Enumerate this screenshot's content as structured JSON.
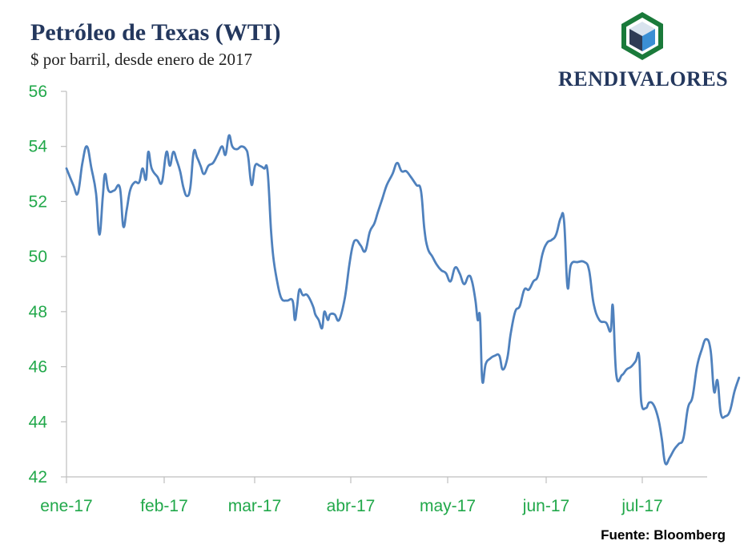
{
  "header": {
    "title": "Petróleo de Texas (WTI)",
    "subtitle": "$ por barril, desde enero de 2017"
  },
  "logo": {
    "name": "RENDIVALORES",
    "icon": "hexagon-cube-icon",
    "colors": {
      "hex": "#1a7a3a",
      "cube_left": "#2e3b55",
      "cube_right": "#3b8fd4",
      "cube_top": "#d9e3ee"
    }
  },
  "source": "Fuente: Bloomberg",
  "chart_data": {
    "type": "line",
    "title": "Petróleo de Texas (WTI)",
    "ylabel": "",
    "xlabel": "",
    "ylim": [
      42,
      56
    ],
    "yticks": [
      42,
      44,
      46,
      48,
      50,
      52,
      54,
      56
    ],
    "xticks": [
      "ene-17",
      "feb-17",
      "mar-17",
      "abr-17",
      "may-17",
      "jun-17",
      "jul-17"
    ],
    "xlim": [
      0,
      29.6
    ],
    "grid": false,
    "colors": {
      "line": "#4f81bd",
      "tick_labels": "#21a84a",
      "axis": "#bfbfbf"
    },
    "series": [
      {
        "name": "WTI",
        "points": [
          [
            0.0,
            53.2
          ],
          [
            0.3,
            52.6
          ],
          [
            0.5,
            52.3
          ],
          [
            0.7,
            53.4
          ],
          [
            0.9,
            54.0
          ],
          [
            1.1,
            53.2
          ],
          [
            1.3,
            52.3
          ],
          [
            1.45,
            50.8
          ],
          [
            1.6,
            52.2
          ],
          [
            1.7,
            53.0
          ],
          [
            1.85,
            52.4
          ],
          [
            2.1,
            52.4
          ],
          [
            2.35,
            52.5
          ],
          [
            2.5,
            51.1
          ],
          [
            2.65,
            51.7
          ],
          [
            2.8,
            52.4
          ],
          [
            3.0,
            52.7
          ],
          [
            3.2,
            52.7
          ],
          [
            3.35,
            53.2
          ],
          [
            3.5,
            52.8
          ],
          [
            3.6,
            53.8
          ],
          [
            3.75,
            53.2
          ],
          [
            4.0,
            52.9
          ],
          [
            4.2,
            52.7
          ],
          [
            4.4,
            53.8
          ],
          [
            4.55,
            53.3
          ],
          [
            4.7,
            53.8
          ],
          [
            4.85,
            53.5
          ],
          [
            5.0,
            53.1
          ],
          [
            5.15,
            52.5
          ],
          [
            5.3,
            52.2
          ],
          [
            5.45,
            52.5
          ],
          [
            5.6,
            53.8
          ],
          [
            5.75,
            53.6
          ],
          [
            5.9,
            53.3
          ],
          [
            6.05,
            53.0
          ],
          [
            6.25,
            53.3
          ],
          [
            6.45,
            53.4
          ],
          [
            6.65,
            53.7
          ],
          [
            6.85,
            54.0
          ],
          [
            7.0,
            53.7
          ],
          [
            7.15,
            54.4
          ],
          [
            7.3,
            54.0
          ],
          [
            7.5,
            53.9
          ],
          [
            7.7,
            54.0
          ],
          [
            7.9,
            53.9
          ],
          [
            8.0,
            53.6
          ],
          [
            8.15,
            52.6
          ],
          [
            8.3,
            53.3
          ],
          [
            8.5,
            53.3
          ],
          [
            8.7,
            53.2
          ],
          [
            8.85,
            53.1
          ],
          [
            9.0,
            51.0
          ],
          [
            9.1,
            50.0
          ],
          [
            9.25,
            49.2
          ],
          [
            9.45,
            48.5
          ],
          [
            9.7,
            48.4
          ],
          [
            9.95,
            48.4
          ],
          [
            10.05,
            47.7
          ],
          [
            10.15,
            48.2
          ],
          [
            10.25,
            48.8
          ],
          [
            10.4,
            48.6
          ],
          [
            10.6,
            48.6
          ],
          [
            10.85,
            48.2
          ],
          [
            10.95,
            47.9
          ],
          [
            11.1,
            47.7
          ],
          [
            11.25,
            47.4
          ],
          [
            11.35,
            48.0
          ],
          [
            11.5,
            47.7
          ],
          [
            11.6,
            47.9
          ],
          [
            11.8,
            47.9
          ],
          [
            12.0,
            47.7
          ],
          [
            12.25,
            48.5
          ],
          [
            12.45,
            49.7
          ],
          [
            12.6,
            50.4
          ],
          [
            12.75,
            50.6
          ],
          [
            12.95,
            50.4
          ],
          [
            13.15,
            50.2
          ],
          [
            13.35,
            50.9
          ],
          [
            13.55,
            51.2
          ],
          [
            13.7,
            51.6
          ],
          [
            13.9,
            52.1
          ],
          [
            14.1,
            52.6
          ],
          [
            14.35,
            53.0
          ],
          [
            14.55,
            53.4
          ],
          [
            14.75,
            53.1
          ],
          [
            14.95,
            53.1
          ],
          [
            15.15,
            52.9
          ],
          [
            15.4,
            52.6
          ],
          [
            15.6,
            52.4
          ],
          [
            15.75,
            51.0
          ],
          [
            15.9,
            50.3
          ],
          [
            16.1,
            50.0
          ],
          [
            16.3,
            49.7
          ],
          [
            16.5,
            49.5
          ],
          [
            16.7,
            49.4
          ],
          [
            16.9,
            49.1
          ],
          [
            17.1,
            49.6
          ],
          [
            17.3,
            49.4
          ],
          [
            17.5,
            49.0
          ],
          [
            17.7,
            49.3
          ],
          [
            17.85,
            49.1
          ],
          [
            18.0,
            48.4
          ],
          [
            18.1,
            47.7
          ],
          [
            18.2,
            47.8
          ],
          [
            18.3,
            45.5
          ],
          [
            18.45,
            46.1
          ],
          [
            18.65,
            46.3
          ],
          [
            18.85,
            46.4
          ],
          [
            19.05,
            46.4
          ],
          [
            19.2,
            45.9
          ],
          [
            19.4,
            46.3
          ],
          [
            19.55,
            47.2
          ],
          [
            19.75,
            48.0
          ],
          [
            19.95,
            48.2
          ],
          [
            20.15,
            48.8
          ],
          [
            20.35,
            48.8
          ],
          [
            20.55,
            49.1
          ],
          [
            20.75,
            49.3
          ],
          [
            20.95,
            50.1
          ],
          [
            21.15,
            50.5
          ],
          [
            21.35,
            50.6
          ],
          [
            21.55,
            50.8
          ],
          [
            21.75,
            51.4
          ],
          [
            21.9,
            51.3
          ],
          [
            22.05,
            48.9
          ],
          [
            22.2,
            49.7
          ],
          [
            22.5,
            49.8
          ],
          [
            22.8,
            49.8
          ],
          [
            23.0,
            49.5
          ],
          [
            23.2,
            48.3
          ],
          [
            23.45,
            47.7
          ],
          [
            23.75,
            47.6
          ],
          [
            23.95,
            47.3
          ],
          [
            24.05,
            48.2
          ],
          [
            24.2,
            45.7
          ],
          [
            24.45,
            45.7
          ],
          [
            24.65,
            45.9
          ],
          [
            24.85,
            46.0
          ],
          [
            25.05,
            46.2
          ],
          [
            25.2,
            46.4
          ],
          [
            25.3,
            44.7
          ],
          [
            25.5,
            44.5
          ],
          [
            25.65,
            44.7
          ],
          [
            25.85,
            44.6
          ],
          [
            26.05,
            44.1
          ],
          [
            26.2,
            43.4
          ],
          [
            26.35,
            42.5
          ],
          [
            26.55,
            42.7
          ],
          [
            26.75,
            43.0
          ],
          [
            26.95,
            43.2
          ],
          [
            27.15,
            43.4
          ],
          [
            27.35,
            44.5
          ],
          [
            27.55,
            44.9
          ],
          [
            27.75,
            46.0
          ],
          [
            27.95,
            46.6
          ],
          [
            28.15,
            47.0
          ],
          [
            28.35,
            46.6
          ],
          [
            28.5,
            45.1
          ],
          [
            28.65,
            45.5
          ],
          [
            28.8,
            44.3
          ],
          [
            29.0,
            44.2
          ],
          [
            29.2,
            44.4
          ],
          [
            29.4,
            45.1
          ],
          [
            29.6,
            45.6
          ]
        ]
      }
    ]
  }
}
